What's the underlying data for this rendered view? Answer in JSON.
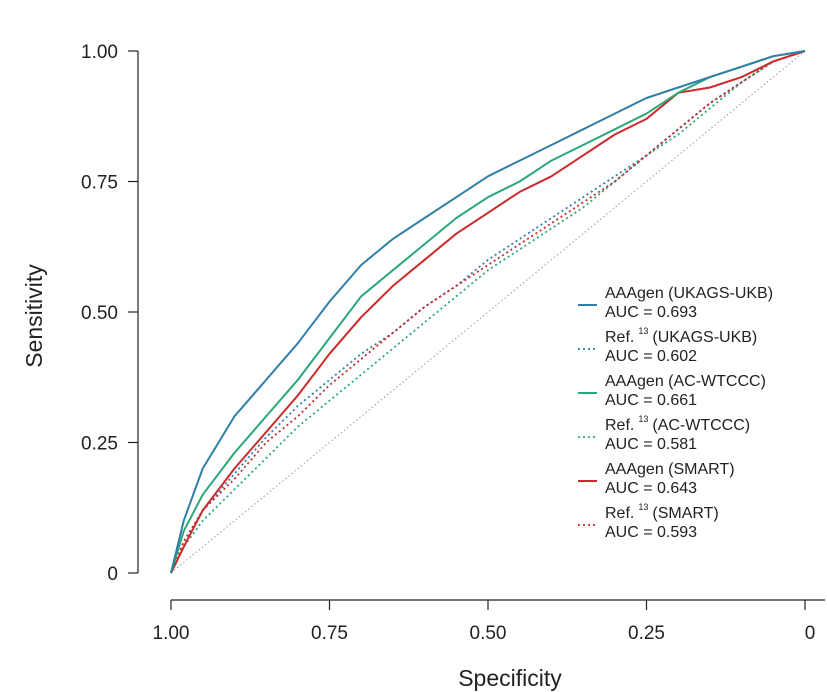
{
  "chart_data": {
    "type": "line",
    "xlabel": "Specificity",
    "ylabel": "Sensitivity",
    "xlim": [
      1.0,
      0.0
    ],
    "ylim": [
      0.0,
      1.0
    ],
    "x_reversed": true,
    "x_ticks": [
      {
        "value": 1.0,
        "label": "1.00"
      },
      {
        "value": 0.75,
        "label": "0.75"
      },
      {
        "value": 0.5,
        "label": "0.50"
      },
      {
        "value": 0.25,
        "label": "0.25"
      },
      {
        "value": 0.0,
        "label": "0"
      }
    ],
    "y_ticks": [
      {
        "value": 0.0,
        "label": "0"
      },
      {
        "value": 0.25,
        "label": "0.25"
      },
      {
        "value": 0.5,
        "label": "0.50"
      },
      {
        "value": 0.75,
        "label": "0.75"
      },
      {
        "value": 1.0,
        "label": "1.00"
      }
    ],
    "grid": false,
    "legend_position": "right",
    "reference_line": {
      "style": "dotted",
      "color": "#999999"
    },
    "series": [
      {
        "name": "AAAgen (UKAGS-UKB)",
        "auc_label": "AUC = 0.693",
        "color": "#2f7fa8",
        "style": "solid",
        "x": [
          1.0,
          0.98,
          0.95,
          0.9,
          0.85,
          0.8,
          0.75,
          0.7,
          0.65,
          0.6,
          0.55,
          0.5,
          0.45,
          0.4,
          0.35,
          0.3,
          0.25,
          0.2,
          0.15,
          0.1,
          0.05,
          0.0
        ],
        "y": [
          0.0,
          0.1,
          0.2,
          0.3,
          0.37,
          0.44,
          0.52,
          0.59,
          0.64,
          0.68,
          0.72,
          0.76,
          0.79,
          0.82,
          0.85,
          0.88,
          0.91,
          0.93,
          0.95,
          0.97,
          0.99,
          1.0
        ]
      },
      {
        "name": "(UKAGS-UKB)",
        "ref_prefix": "Ref.",
        "ref_sup": "13",
        "auc_label": "AUC = 0.602",
        "color": "#2f7fa8",
        "style": "dotted",
        "x": [
          1.0,
          0.98,
          0.95,
          0.9,
          0.85,
          0.8,
          0.75,
          0.7,
          0.65,
          0.6,
          0.55,
          0.5,
          0.45,
          0.4,
          0.35,
          0.3,
          0.25,
          0.2,
          0.15,
          0.1,
          0.05,
          0.0
        ],
        "y": [
          0.0,
          0.06,
          0.12,
          0.19,
          0.26,
          0.32,
          0.37,
          0.42,
          0.46,
          0.51,
          0.55,
          0.6,
          0.64,
          0.68,
          0.72,
          0.76,
          0.8,
          0.85,
          0.9,
          0.94,
          0.98,
          1.0
        ]
      },
      {
        "name": "AAAgen (AC-WTCCC)",
        "auc_label": "AUC = 0.661",
        "color": "#2aa876",
        "style": "solid",
        "x": [
          1.0,
          0.98,
          0.95,
          0.9,
          0.85,
          0.8,
          0.75,
          0.7,
          0.65,
          0.6,
          0.55,
          0.5,
          0.45,
          0.4,
          0.35,
          0.3,
          0.25,
          0.2,
          0.15,
          0.1,
          0.05,
          0.0
        ],
        "y": [
          0.0,
          0.08,
          0.15,
          0.23,
          0.3,
          0.37,
          0.45,
          0.53,
          0.58,
          0.63,
          0.68,
          0.72,
          0.75,
          0.79,
          0.82,
          0.85,
          0.88,
          0.92,
          0.95,
          0.97,
          0.99,
          1.0
        ]
      },
      {
        "name": "(AC-WTCCC)",
        "ref_prefix": "Ref.",
        "ref_sup": "13",
        "auc_label": "AUC = 0.581",
        "color": "#2aa876",
        "style": "dotted",
        "x": [
          1.0,
          0.98,
          0.95,
          0.9,
          0.85,
          0.8,
          0.75,
          0.7,
          0.65,
          0.6,
          0.55,
          0.5,
          0.45,
          0.4,
          0.35,
          0.3,
          0.25,
          0.2,
          0.15,
          0.1,
          0.05,
          0.0
        ],
        "y": [
          0.0,
          0.05,
          0.1,
          0.16,
          0.22,
          0.28,
          0.33,
          0.38,
          0.43,
          0.48,
          0.53,
          0.58,
          0.62,
          0.66,
          0.7,
          0.75,
          0.8,
          0.84,
          0.89,
          0.94,
          0.98,
          1.0
        ]
      },
      {
        "name": "AAAgen (SMART)",
        "auc_label": "AUC = 0.643",
        "color": "#cc2a2a",
        "style": "solid",
        "x": [
          1.0,
          0.98,
          0.95,
          0.9,
          0.85,
          0.8,
          0.75,
          0.7,
          0.65,
          0.6,
          0.55,
          0.5,
          0.45,
          0.4,
          0.35,
          0.3,
          0.25,
          0.2,
          0.15,
          0.1,
          0.05,
          0.0
        ],
        "y": [
          0.0,
          0.05,
          0.12,
          0.2,
          0.27,
          0.34,
          0.42,
          0.49,
          0.55,
          0.6,
          0.65,
          0.69,
          0.73,
          0.76,
          0.8,
          0.84,
          0.87,
          0.92,
          0.93,
          0.95,
          0.98,
          1.0
        ]
      },
      {
        "name": "(SMART)",
        "ref_prefix": "Ref.",
        "ref_sup": "13",
        "auc_label": "AUC = 0.593",
        "color": "#cc2a2a",
        "style": "dotted",
        "x": [
          1.0,
          0.98,
          0.95,
          0.9,
          0.85,
          0.8,
          0.75,
          0.7,
          0.65,
          0.6,
          0.55,
          0.5,
          0.45,
          0.4,
          0.35,
          0.3,
          0.25,
          0.2,
          0.15,
          0.1,
          0.05,
          0.0
        ],
        "y": [
          0.0,
          0.06,
          0.12,
          0.18,
          0.25,
          0.3,
          0.36,
          0.41,
          0.46,
          0.51,
          0.55,
          0.59,
          0.63,
          0.67,
          0.71,
          0.75,
          0.8,
          0.85,
          0.9,
          0.94,
          0.98,
          1.0
        ]
      }
    ]
  }
}
